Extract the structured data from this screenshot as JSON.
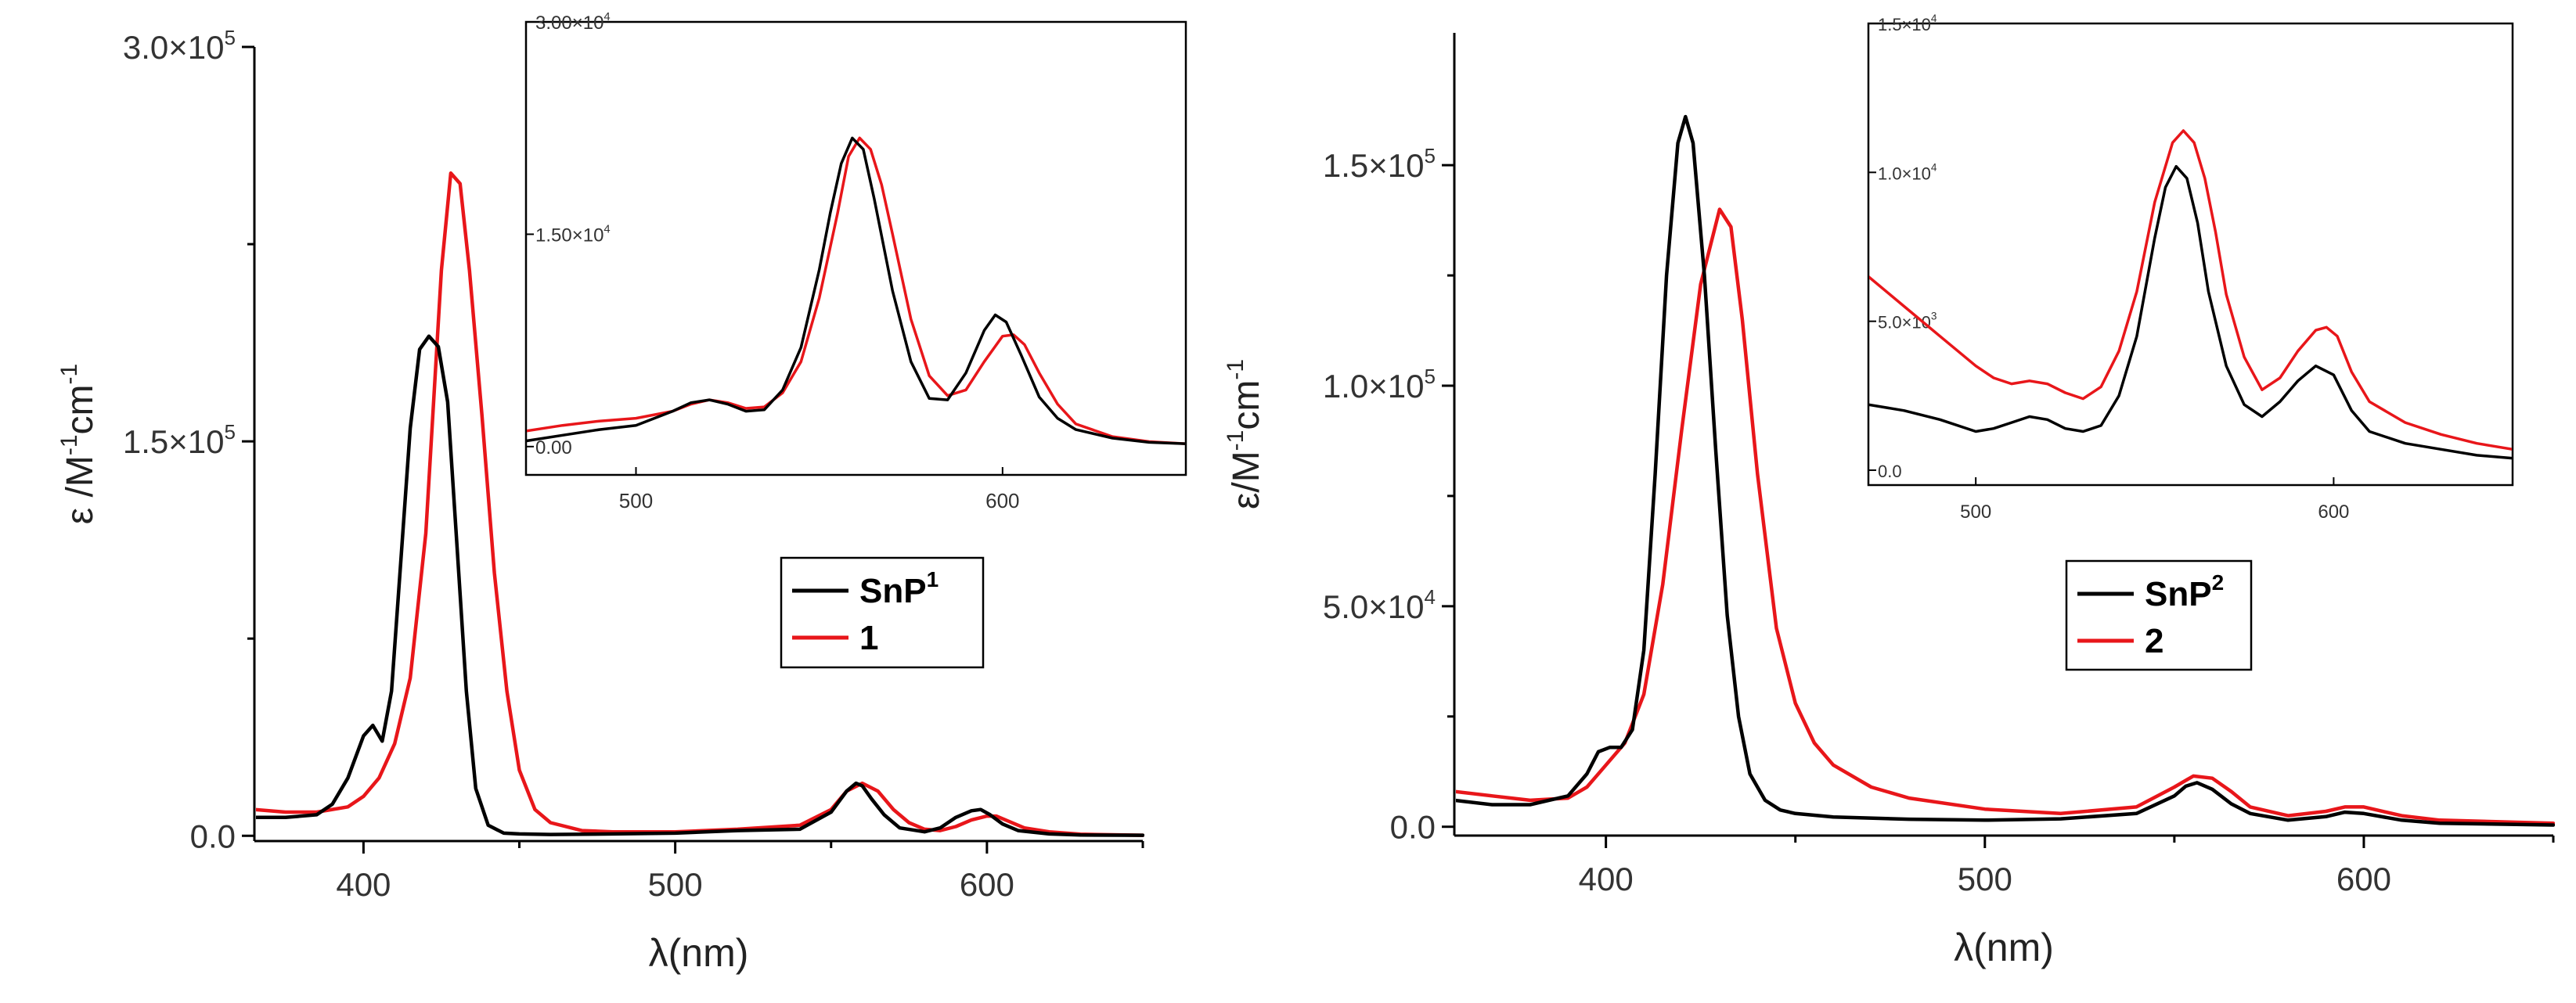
{
  "chart_data": [
    {
      "type": "line",
      "panel": "left",
      "xlabel": "λ(nm)",
      "ylabel_base": "ε /M",
      "ylabel_exp1": "-1",
      "ylabel_mid": "cm",
      "ylabel_exp2": "-1",
      "xlim": [
        365,
        650
      ],
      "ylim": [
        -2000,
        300000
      ],
      "xticks": [
        400,
        500,
        600
      ],
      "yticks": [
        {
          "value": 0,
          "label": "0.0"
        },
        {
          "value": 150000,
          "label": "1.5×10",
          "exp": "5"
        },
        {
          "value": 300000,
          "label": "3.0×10",
          "exp": "5"
        }
      ],
      "legend": {
        "position": "middle-right",
        "entries": [
          {
            "name": "SnP",
            "sup": "1",
            "color": "#000000"
          },
          {
            "name": "1",
            "sup": "",
            "color": "#e8161a"
          }
        ]
      },
      "series": [
        {
          "name": "SnP1",
          "color": "#000000",
          "x": [
            365,
            375,
            385,
            390,
            395,
            400,
            403,
            406,
            409,
            412,
            415,
            418,
            421,
            424,
            427,
            430,
            433,
            436,
            440,
            445,
            450,
            460,
            480,
            500,
            520,
            540,
            550,
            555,
            558,
            560,
            563,
            567,
            572,
            580,
            585,
            590,
            595,
            598,
            601,
            605,
            610,
            620,
            630,
            650
          ],
          "y": [
            7000,
            7000,
            8000,
            12000,
            22000,
            38000,
            42000,
            36000,
            55000,
            105000,
            155000,
            185000,
            190000,
            186000,
            165000,
            110000,
            55000,
            18000,
            4000,
            1000,
            700,
            500,
            700,
            1000,
            2000,
            2500,
            9000,
            17000,
            20000,
            19000,
            14000,
            8000,
            3000,
            1500,
            3000,
            7000,
            9500,
            10000,
            8000,
            4500,
            2000,
            700,
            300,
            200
          ]
        },
        {
          "name": "1",
          "color": "#e8161a",
          "x": [
            365,
            375,
            385,
            395,
            400,
            405,
            410,
            415,
            420,
            425,
            428,
            431,
            434,
            438,
            442,
            446,
            450,
            455,
            460,
            470,
            480,
            500,
            520,
            540,
            550,
            555,
            560,
            565,
            570,
            575,
            580,
            585,
            590,
            595,
            600,
            603,
            607,
            612,
            620,
            630,
            650
          ],
          "y": [
            10000,
            9000,
            9000,
            11000,
            15000,
            22000,
            35000,
            60000,
            115000,
            215000,
            252000,
            248000,
            215000,
            160000,
            100000,
            55000,
            25000,
            10000,
            5000,
            2000,
            1500,
            1500,
            2500,
            4000,
            10000,
            17000,
            20000,
            17000,
            10000,
            5000,
            2500,
            2000,
            3500,
            6000,
            7500,
            7500,
            5500,
            3000,
            1500,
            600,
            200
          ]
        }
      ],
      "inset": {
        "xlim": [
          470,
          650
        ],
        "ylim": [
          -2000,
          30000
        ],
        "xticks": [
          500,
          600
        ],
        "yticks": [
          {
            "value": 0,
            "label": "0.00"
          },
          {
            "value": 15000,
            "label": "1.50×10",
            "exp": "4"
          },
          {
            "value": 30000,
            "label": "3.00×10",
            "exp": "4"
          }
        ],
        "series": [
          {
            "name": "SnP1",
            "color": "#000000",
            "x": [
              470,
              480,
              490,
              500,
              510,
              515,
              520,
              525,
              530,
              535,
              540,
              545,
              550,
              553,
              556,
              559,
              562,
              565,
              570,
              575,
              580,
              585,
              590,
              595,
              598,
              601,
              605,
              610,
              615,
              620,
              630,
              640,
              650
            ],
            "y": [
              400,
              800,
              1200,
              1500,
              2500,
              3100,
              3300,
              3000,
              2500,
              2600,
              4000,
              7000,
              12500,
              16500,
              20000,
              21800,
              21000,
              17500,
              11000,
              6000,
              3400,
              3300,
              5200,
              8200,
              9300,
              8800,
              6500,
              3500,
              2000,
              1200,
              600,
              300,
              200
            ]
          },
          {
            "name": "1",
            "color": "#e8161a",
            "x": [
              470,
              480,
              490,
              500,
              510,
              515,
              520,
              525,
              530,
              535,
              540,
              545,
              550,
              555,
              558,
              561,
              564,
              567,
              570,
              575,
              580,
              585,
              590,
              595,
              600,
              603,
              606,
              610,
              615,
              620,
              630,
              640,
              650
            ],
            "y": [
              1100,
              1500,
              1800,
              2000,
              2500,
              3000,
              3300,
              3100,
              2700,
              2800,
              3800,
              6000,
              10500,
              16500,
              20500,
              21800,
              21000,
              18500,
              15000,
              9000,
              5000,
              3600,
              4000,
              6000,
              7800,
              7900,
              7200,
              5200,
              3000,
              1600,
              700,
              350,
              200
            ]
          }
        ]
      }
    },
    {
      "type": "line",
      "panel": "right",
      "xlabel": "λ(nm)",
      "ylabel_base": "ε/M",
      "ylabel_exp1": "-1",
      "ylabel_mid": "cm",
      "ylabel_exp2": "-1",
      "xlim": [
        360,
        650
      ],
      "ylim": [
        -2000,
        180000
      ],
      "xticks": [
        400,
        500,
        600
      ],
      "yticks": [
        {
          "value": 0,
          "label": "0.0"
        },
        {
          "value": 50000,
          "label": "5.0×10",
          "exp": "4"
        },
        {
          "value": 100000,
          "label": "1.0×10",
          "exp": "5"
        },
        {
          "value": 150000,
          "label": "1.5×10",
          "exp": "5"
        }
      ],
      "legend": {
        "position": "middle-right",
        "entries": [
          {
            "name": "SnP",
            "sup": "2",
            "color": "#000000"
          },
          {
            "name": "2",
            "sup": "",
            "color": "#e8161a"
          }
        ]
      },
      "series": [
        {
          "name": "SnP2",
          "color": "#000000",
          "x": [
            360,
            370,
            380,
            390,
            395,
            398,
            401,
            404,
            407,
            410,
            413,
            416,
            419,
            421,
            423,
            426,
            429,
            432,
            435,
            438,
            442,
            446,
            450,
            460,
            480,
            500,
            520,
            540,
            550,
            553,
            556,
            560,
            565,
            570,
            580,
            590,
            595,
            600,
            610,
            620,
            650
          ],
          "y": [
            6000,
            5000,
            5000,
            7000,
            12000,
            17000,
            18000,
            18000,
            22000,
            40000,
            80000,
            125000,
            155000,
            161000,
            155000,
            125000,
            85000,
            48000,
            25000,
            12000,
            6000,
            3800,
            3000,
            2200,
            1700,
            1500,
            1800,
            3000,
            7000,
            9200,
            10000,
            8500,
            5200,
            3000,
            1500,
            2300,
            3300,
            3000,
            1500,
            800,
            400
          ]
        },
        {
          "name": "2",
          "color": "#e8161a",
          "x": [
            360,
            370,
            380,
            390,
            395,
            400,
            405,
            410,
            415,
            420,
            425,
            430,
            433,
            436,
            440,
            445,
            450,
            455,
            460,
            470,
            480,
            500,
            520,
            540,
            550,
            555,
            560,
            565,
            570,
            580,
            590,
            595,
            600,
            610,
            620,
            650
          ],
          "y": [
            8000,
            7000,
            6000,
            6500,
            9000,
            14000,
            19000,
            30000,
            55000,
            90000,
            123000,
            140000,
            136000,
            115000,
            80000,
            45000,
            28000,
            19000,
            14000,
            9000,
            6500,
            4000,
            3000,
            4500,
            9000,
            11500,
            11000,
            8000,
            4500,
            2500,
            3500,
            4500,
            4500,
            2500,
            1500,
            800
          ]
        }
      ],
      "inset": {
        "xlim": [
          470,
          650
        ],
        "ylim": [
          -500,
          15000
        ],
        "xticks": [
          500,
          600
        ],
        "yticks": [
          {
            "value": 0,
            "label": "0.0"
          },
          {
            "value": 5000,
            "label": "5.0×10",
            "exp": "3"
          },
          {
            "value": 10000,
            "label": "1.0×10",
            "exp": "4"
          },
          {
            "value": 15000,
            "label": "1.5×10",
            "exp": "4"
          }
        ],
        "series": [
          {
            "name": "SnP2",
            "color": "#000000",
            "x": [
              470,
              480,
              490,
              500,
              505,
              510,
              515,
              520,
              525,
              530,
              535,
              540,
              545,
              550,
              553,
              556,
              559,
              562,
              565,
              570,
              575,
              580,
              585,
              590,
              595,
              600,
              605,
              610,
              620,
              630,
              640,
              650
            ],
            "y": [
              2200,
              2000,
              1700,
              1300,
              1400,
              1600,
              1800,
              1700,
              1400,
              1300,
              1500,
              2500,
              4500,
              7800,
              9500,
              10200,
              9800,
              8300,
              6000,
              3500,
              2200,
              1800,
              2300,
              3000,
              3500,
              3200,
              2000,
              1300,
              900,
              700,
              500,
              400
            ]
          },
          {
            "name": "2",
            "color": "#e8161a",
            "x": [
              470,
              480,
              490,
              500,
              505,
              510,
              515,
              520,
              525,
              530,
              535,
              540,
              545,
              550,
              555,
              558,
              561,
              564,
              567,
              570,
              575,
              580,
              585,
              590,
              595,
              598,
              601,
              605,
              610,
              620,
              630,
              640,
              650
            ],
            "y": [
              6500,
              5500,
              4500,
              3500,
              3100,
              2900,
              3000,
              2900,
              2600,
              2400,
              2800,
              4000,
              6000,
              9000,
              11000,
              11400,
              11000,
              9800,
              8000,
              5900,
              3800,
              2700,
              3100,
              4000,
              4700,
              4800,
              4500,
              3300,
              2300,
              1600,
              1200,
              900,
              700
            ]
          }
        ]
      }
    }
  ]
}
